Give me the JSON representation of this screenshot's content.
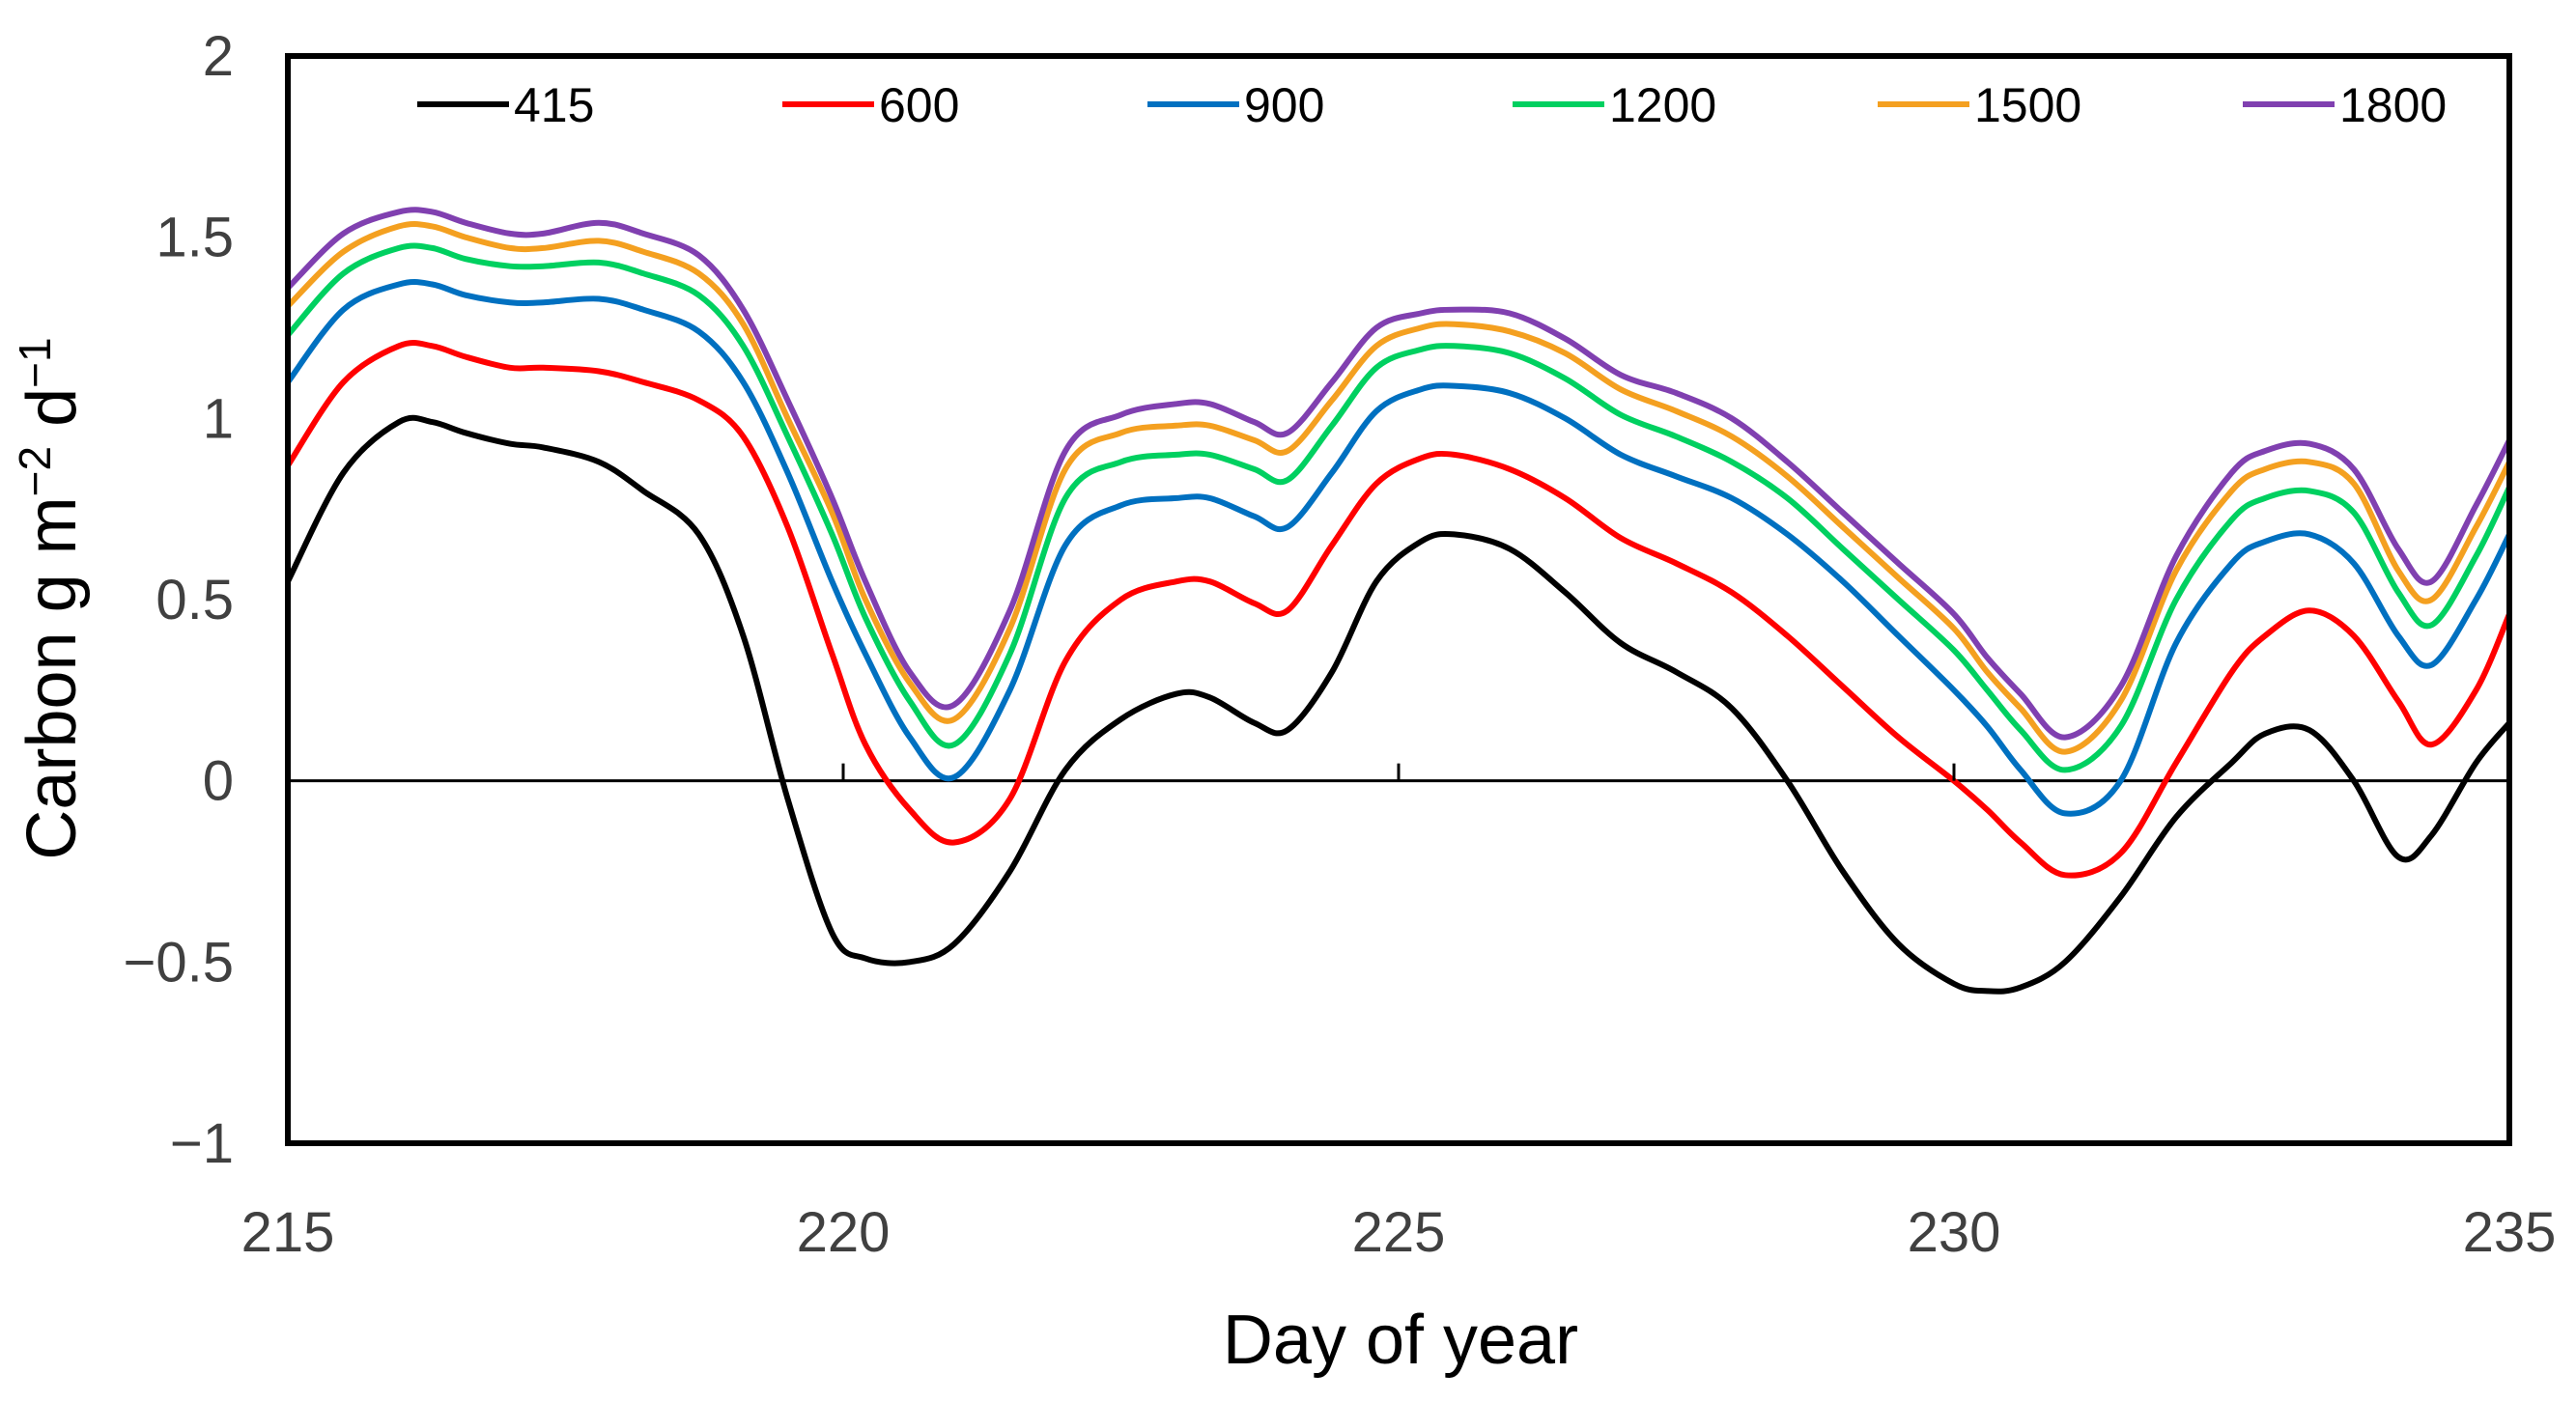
{
  "chart_data": {
    "type": "line",
    "xlabel": "Day of year",
    "ylabel": "Carbon g m",
    "ylabel_sup1": "−2",
    "ylabel_mid": " d",
    "ylabel_sup2": "−1",
    "xlim": [
      215,
      235
    ],
    "ylim": [
      -1,
      2
    ],
    "x_ticks": [
      "215",
      "220",
      "225",
      "230",
      "235"
    ],
    "y_ticks": [
      "2",
      "1.5",
      "1",
      "0.5",
      "0",
      "−0.5",
      "−1"
    ],
    "legend_position": "top",
    "x": [
      215,
      215.5,
      216,
      216.3,
      216.6,
      217,
      217.3,
      217.8,
      218.2,
      218.7,
      219.1,
      219.5,
      219.9,
      220.2,
      220.6,
      221,
      221.5,
      222,
      222.5,
      223,
      223.3,
      223.7,
      224,
      224.4,
      224.8,
      225.2,
      225.5,
      226,
      226.5,
      227,
      227.5,
      228,
      228.5,
      229,
      229.5,
      230,
      230.3,
      230.6,
      231,
      231.5,
      232,
      232.5,
      232.8,
      233.2,
      233.6,
      234,
      234.3,
      234.7,
      235
    ],
    "series": [
      {
        "name": "415",
        "color": "#000000",
        "values": [
          0.55,
          0.85,
          0.99,
          0.99,
          0.96,
          0.93,
          0.92,
          0.88,
          0.8,
          0.68,
          0.4,
          -0.05,
          -0.42,
          -0.49,
          -0.5,
          -0.45,
          -0.25,
          0.03,
          0.17,
          0.24,
          0.23,
          0.16,
          0.14,
          0.3,
          0.55,
          0.66,
          0.68,
          0.64,
          0.52,
          0.38,
          0.3,
          0.2,
          0.0,
          -0.25,
          -0.45,
          -0.56,
          -0.58,
          -0.57,
          -0.5,
          -0.32,
          -0.1,
          0.05,
          0.13,
          0.14,
          0.0,
          -0.21,
          -0.15,
          0.05,
          0.16
        ]
      },
      {
        "name": "600",
        "color": "#ff0000",
        "values": [
          0.87,
          1.1,
          1.2,
          1.2,
          1.17,
          1.14,
          1.14,
          1.13,
          1.1,
          1.05,
          0.95,
          0.7,
          0.35,
          0.1,
          -0.08,
          -0.17,
          -0.05,
          0.33,
          0.5,
          0.55,
          0.55,
          0.49,
          0.47,
          0.65,
          0.82,
          0.89,
          0.9,
          0.86,
          0.78,
          0.67,
          0.6,
          0.52,
          0.4,
          0.26,
          0.12,
          0.0,
          -0.08,
          -0.17,
          -0.26,
          -0.2,
          0.05,
          0.3,
          0.4,
          0.47,
          0.4,
          0.22,
          0.1,
          0.25,
          0.46
        ]
      },
      {
        "name": "900",
        "color": "#0070c0",
        "values": [
          1.1,
          1.3,
          1.37,
          1.37,
          1.34,
          1.32,
          1.32,
          1.33,
          1.3,
          1.24,
          1.1,
          0.85,
          0.55,
          0.35,
          0.12,
          0.01,
          0.25,
          0.65,
          0.76,
          0.78,
          0.78,
          0.73,
          0.7,
          0.85,
          1.02,
          1.08,
          1.09,
          1.07,
          1.0,
          0.9,
          0.84,
          0.78,
          0.68,
          0.55,
          0.4,
          0.25,
          0.15,
          0.03,
          -0.09,
          0.0,
          0.38,
          0.6,
          0.66,
          0.68,
          0.6,
          0.4,
          0.32,
          0.5,
          0.68
        ]
      },
      {
        "name": "1200",
        "color": "#00d060",
        "values": [
          1.23,
          1.4,
          1.47,
          1.47,
          1.44,
          1.42,
          1.42,
          1.43,
          1.4,
          1.34,
          1.2,
          0.95,
          0.68,
          0.45,
          0.22,
          0.1,
          0.35,
          0.78,
          0.88,
          0.9,
          0.9,
          0.86,
          0.83,
          0.98,
          1.14,
          1.19,
          1.2,
          1.18,
          1.11,
          1.01,
          0.95,
          0.88,
          0.78,
          0.64,
          0.5,
          0.36,
          0.25,
          0.14,
          0.03,
          0.15,
          0.5,
          0.72,
          0.78,
          0.8,
          0.74,
          0.52,
          0.43,
          0.62,
          0.81
        ]
      },
      {
        "name": "1500",
        "color": "#f4a020",
        "values": [
          1.31,
          1.46,
          1.53,
          1.53,
          1.5,
          1.47,
          1.47,
          1.49,
          1.46,
          1.4,
          1.26,
          1.0,
          0.74,
          0.5,
          0.27,
          0.17,
          0.42,
          0.86,
          0.96,
          0.98,
          0.98,
          0.94,
          0.91,
          1.05,
          1.2,
          1.25,
          1.26,
          1.24,
          1.18,
          1.08,
          1.02,
          0.95,
          0.84,
          0.7,
          0.56,
          0.42,
          0.3,
          0.2,
          0.08,
          0.22,
          0.58,
          0.8,
          0.86,
          0.88,
          0.82,
          0.58,
          0.5,
          0.7,
          0.88
        ]
      },
      {
        "name": "1800",
        "color": "#8040b0",
        "values": [
          1.36,
          1.51,
          1.57,
          1.57,
          1.54,
          1.51,
          1.51,
          1.54,
          1.51,
          1.45,
          1.3,
          1.05,
          0.78,
          0.55,
          0.3,
          0.21,
          0.47,
          0.91,
          1.01,
          1.04,
          1.04,
          0.99,
          0.96,
          1.1,
          1.25,
          1.29,
          1.3,
          1.29,
          1.22,
          1.12,
          1.07,
          1.0,
          0.88,
          0.74,
          0.6,
          0.46,
          0.34,
          0.24,
          0.12,
          0.26,
          0.62,
          0.85,
          0.91,
          0.93,
          0.86,
          0.64,
          0.55,
          0.76,
          0.94
        ]
      }
    ]
  }
}
